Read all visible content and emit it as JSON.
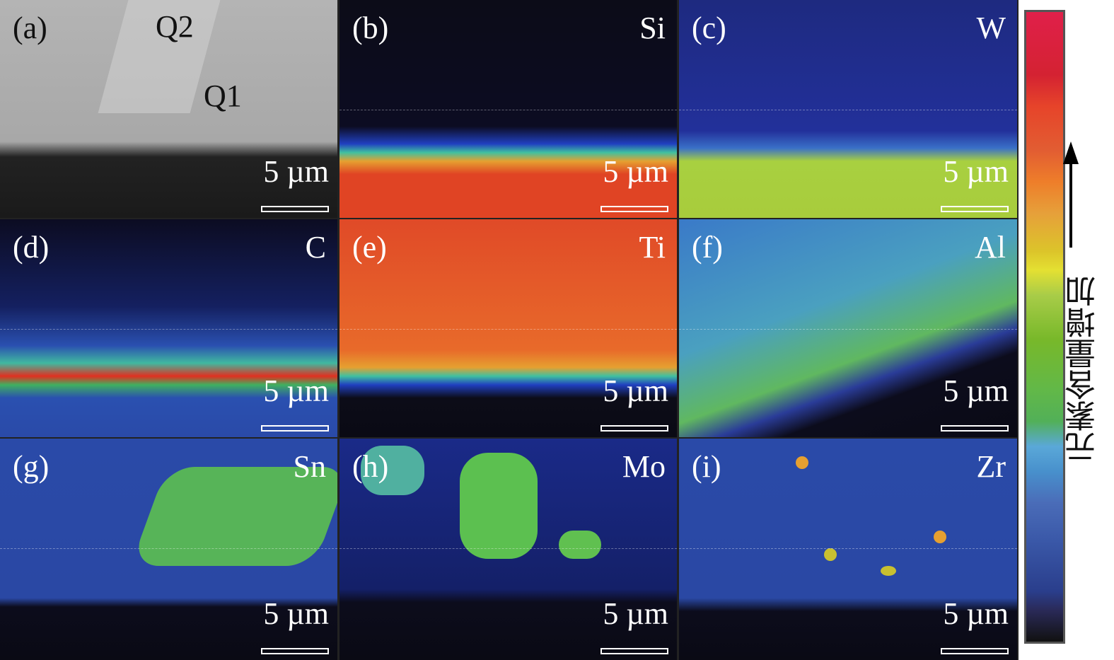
{
  "panels": [
    {
      "label": "(a)",
      "element": "",
      "scale": "5 µm",
      "annotations": [
        "Q2",
        "Q1"
      ]
    },
    {
      "label": "(b)",
      "element": "Si",
      "scale": "5 µm"
    },
    {
      "label": "(c)",
      "element": "W",
      "scale": "5 µm"
    },
    {
      "label": "(d)",
      "element": "C",
      "scale": "5 µm"
    },
    {
      "label": "(e)",
      "element": "Ti",
      "scale": "5 µm"
    },
    {
      "label": "(f)",
      "element": "Al",
      "scale": "5 µm"
    },
    {
      "label": "(g)",
      "element": "Sn",
      "scale": "5 µm"
    },
    {
      "label": "(h)",
      "element": "Mo",
      "scale": "5 µm"
    },
    {
      "label": "(i)",
      "element": "Zr",
      "scale": "5 µm"
    }
  ],
  "colorbar": {
    "label": "元素含量增加",
    "direction": "up",
    "colors": [
      "#e0204a",
      "#e6442a",
      "#ee7e2a",
      "#dcc42a",
      "#78b82a",
      "#52b058",
      "#4890cc",
      "#3a58a8",
      "#2a2a58",
      "#111111"
    ]
  }
}
